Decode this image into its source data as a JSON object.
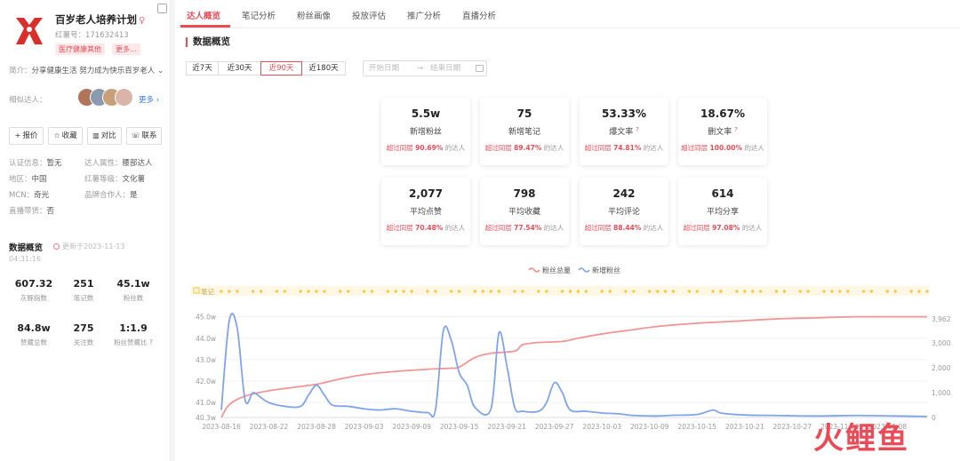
{
  "profile": {
    "name": "百岁老人培养计划",
    "gender": "♀",
    "red_id": "红薯号：171632413",
    "tags": [
      "医疗健康其他",
      "更多..."
    ],
    "intro_label": "简介：",
    "intro": "分享健康生活 努力成为快乐百岁老人",
    "intro_chevron": "⌄",
    "similar_label": "相似达人：",
    "similar_more": "更多 ›",
    "avatar_colors": [
      "#b0745c",
      "#8a9bb0",
      "#c7a07a",
      "#d9b4a8"
    ],
    "buttons": [
      {
        "icon": "+",
        "label": "报价"
      },
      {
        "icon": "☆",
        "label": "收藏"
      },
      {
        "icon": "▥",
        "label": "对比"
      },
      {
        "icon": "☏",
        "label": "联系"
      }
    ],
    "info": [
      {
        "k": "认证信息：",
        "v": "暂无"
      },
      {
        "k": "达人属性：",
        "v": "腰部达人"
      },
      {
        "k": "地区：",
        "v": "中国"
      },
      {
        "k": "红薯等级：",
        "v": "文化薯"
      },
      {
        "k": "MCN：",
        "v": "奇光"
      },
      {
        "k": "品牌合作人：",
        "v": "是"
      },
      {
        "k": "直播带货：",
        "v": "否"
      }
    ]
  },
  "data_overview": {
    "title": "数据概览",
    "updated": "更新于2023-11-13",
    "time": "04:31:16",
    "stats": [
      {
        "value": "607.32",
        "label": "灰豚指数"
      },
      {
        "value": "251",
        "label": "笔记数"
      },
      {
        "value": "45.1w",
        "label": "粉丝数"
      },
      {
        "value": "84.8w",
        "label": "赞藏总数"
      },
      {
        "value": "275",
        "label": "关注数"
      },
      {
        "value": "1:1.9",
        "label": "粉丝赞藏比 ?"
      }
    ]
  },
  "tabs": [
    "达人概览",
    "笔记分析",
    "粉丝画像",
    "投放评估",
    "推广分析",
    "直播分析"
  ],
  "section_title": "数据概览",
  "ranges": [
    "近7天",
    "近30天",
    "近90天",
    "近180天"
  ],
  "selected_range": "近90天",
  "date_start": "开始日期",
  "date_arrow": "→",
  "date_end": "结束日期",
  "cards": [
    {
      "value": "5.5w",
      "label": "新增粉丝",
      "q": false,
      "cmp": "超过同层",
      "pct": "90.69%",
      "tail": "的达人"
    },
    {
      "value": "75",
      "label": "新增笔记",
      "q": false,
      "cmp": "超过同层",
      "pct": "89.47%",
      "tail": "的达人"
    },
    {
      "value": "53.33%",
      "label": "爆文率",
      "q": true,
      "cmp": "超过同层",
      "pct": "74.81%",
      "tail": "的达人"
    },
    {
      "value": "18.67%",
      "label": "删文率",
      "q": true,
      "cmp": "超过同层",
      "pct": "100.00%",
      "tail": "的达人"
    },
    {
      "value": "2,077",
      "label": "平均点赞",
      "q": false,
      "cmp": "超过同层",
      "pct": "70.48%",
      "tail": "的达人"
    },
    {
      "value": "798",
      "label": "平均收藏",
      "q": false,
      "cmp": "超过同层",
      "pct": "77.54%",
      "tail": "的达人"
    },
    {
      "value": "242",
      "label": "平均评论",
      "q": false,
      "cmp": "超过同层",
      "pct": "88.44%",
      "tail": "的达人"
    },
    {
      "value": "614",
      "label": "平均分享",
      "q": false,
      "cmp": "超过同层",
      "pct": "97.08%",
      "tail": "的达人"
    }
  ],
  "watermark": "火鲤鱼",
  "chart_data": {
    "type": "line",
    "legend": [
      "粉丝总量",
      "新增粉丝"
    ],
    "legend_position": "top-center",
    "note_strip_label": "笔记",
    "colors": {
      "total": "#ef8a8a",
      "new": "#7fa4ec",
      "strip": "#f5c542"
    },
    "x_ticks": [
      "2023-08-16",
      "2023-08-22",
      "2023-08-28",
      "2023-09-03",
      "2023-09-09",
      "2023-09-15",
      "2023-09-21",
      "2023-09-27",
      "2023-10-03",
      "2023-10-09",
      "2023-10-15",
      "2023-10-21",
      "2023-10-27",
      "2023-11-02",
      "2023-11-08"
    ],
    "y_left_ticks": [
      "45.0w",
      "44.0w",
      "43.0w",
      "42.0w",
      "41.0w",
      "40.3w"
    ],
    "y_left_tick_values": [
      45.0,
      44.0,
      43.0,
      42.0,
      41.0,
      40.3
    ],
    "y_left_range": [
      40.3,
      45.4
    ],
    "y_right_ticks": [
      "3,962",
      "3,000",
      "2,000",
      "1,000",
      "0"
    ],
    "y_right_tick_values": [
      3962,
      3000,
      2000,
      1000,
      0
    ],
    "y_right_range": [
      0,
      4400
    ],
    "day_count": 90,
    "series": [
      {
        "name": "粉丝总量",
        "axis": "left",
        "values": [
          [
            0,
            40.3
          ],
          [
            1,
            40.9
          ],
          [
            3,
            41.3
          ],
          [
            6,
            41.55
          ],
          [
            9,
            41.7
          ],
          [
            12,
            41.85
          ],
          [
            15,
            42.1
          ],
          [
            18,
            42.3
          ],
          [
            22,
            42.45
          ],
          [
            26,
            42.55
          ],
          [
            29,
            42.6
          ],
          [
            30,
            42.65
          ],
          [
            32,
            43.1
          ],
          [
            34,
            43.3
          ],
          [
            37,
            43.4
          ],
          [
            38,
            43.7
          ],
          [
            40,
            43.8
          ],
          [
            43,
            43.85
          ],
          [
            45,
            44.0
          ],
          [
            48,
            44.2
          ],
          [
            51,
            44.35
          ],
          [
            55,
            44.55
          ],
          [
            60,
            44.7
          ],
          [
            65,
            44.8
          ],
          [
            70,
            44.9
          ],
          [
            75,
            44.95
          ],
          [
            80,
            45.0
          ],
          [
            85,
            45.0
          ],
          [
            89,
            45.0
          ]
        ]
      },
      {
        "name": "新增粉丝",
        "axis": "right",
        "values": [
          [
            0,
            300
          ],
          [
            1,
            3900
          ],
          [
            2,
            3600
          ],
          [
            3,
            700
          ],
          [
            4,
            1000
          ],
          [
            5,
            800
          ],
          [
            6,
            600
          ],
          [
            8,
            450
          ],
          [
            10,
            450
          ],
          [
            11,
            900
          ],
          [
            12,
            1300
          ],
          [
            13,
            900
          ],
          [
            14,
            500
          ],
          [
            16,
            450
          ],
          [
            18,
            350
          ],
          [
            20,
            300
          ],
          [
            22,
            350
          ],
          [
            24,
            250
          ],
          [
            26,
            200
          ],
          [
            27,
            300
          ],
          [
            28,
            3500
          ],
          [
            29,
            3100
          ],
          [
            30,
            1800
          ],
          [
            31,
            1300
          ],
          [
            32,
            400
          ],
          [
            34,
            350
          ],
          [
            35,
            3400
          ],
          [
            36,
            2100
          ],
          [
            37,
            400
          ],
          [
            38,
            250
          ],
          [
            40,
            250
          ],
          [
            41,
            600
          ],
          [
            42,
            1400
          ],
          [
            43,
            1000
          ],
          [
            44,
            300
          ],
          [
            46,
            250
          ],
          [
            48,
            180
          ],
          [
            50,
            150
          ],
          [
            52,
            80
          ],
          [
            55,
            60
          ],
          [
            57,
            90
          ],
          [
            60,
            120
          ],
          [
            62,
            300
          ],
          [
            63,
            180
          ],
          [
            66,
            100
          ],
          [
            70,
            80
          ],
          [
            75,
            60
          ],
          [
            80,
            80
          ],
          [
            85,
            60
          ],
          [
            89,
            40
          ]
        ]
      }
    ]
  }
}
